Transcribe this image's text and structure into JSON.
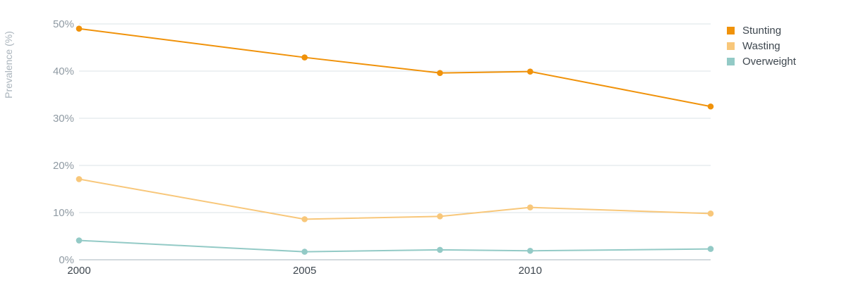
{
  "chart_data": {
    "type": "line",
    "x": [
      2000,
      2005,
      2008,
      2010,
      2014
    ],
    "x_ticks": [
      "2000",
      "2005",
      "2010"
    ],
    "x_tick_values": [
      2000,
      2005,
      2010
    ],
    "xlim": [
      2000,
      2014
    ],
    "ylim": [
      0,
      50
    ],
    "y_ticks": [
      "0%",
      "10%",
      "20%",
      "30%",
      "40%",
      "50%"
    ],
    "y_tick_values": [
      0,
      10,
      20,
      30,
      40,
      50
    ],
    "ylabel": "Prevalence (%)",
    "xlabel": "",
    "grid": true,
    "legend_position": "top-right",
    "series": [
      {
        "name": "Stunting",
        "color": "#f0920a",
        "values": [
          49.0,
          42.9,
          39.6,
          39.9,
          32.5
        ]
      },
      {
        "name": "Wasting",
        "color": "#f8c77a",
        "values": [
          17.1,
          8.6,
          9.2,
          11.1,
          9.8
        ]
      },
      {
        "name": "Overweight",
        "color": "#93cac6",
        "values": [
          4.1,
          1.7,
          2.1,
          1.9,
          2.3
        ]
      }
    ]
  }
}
